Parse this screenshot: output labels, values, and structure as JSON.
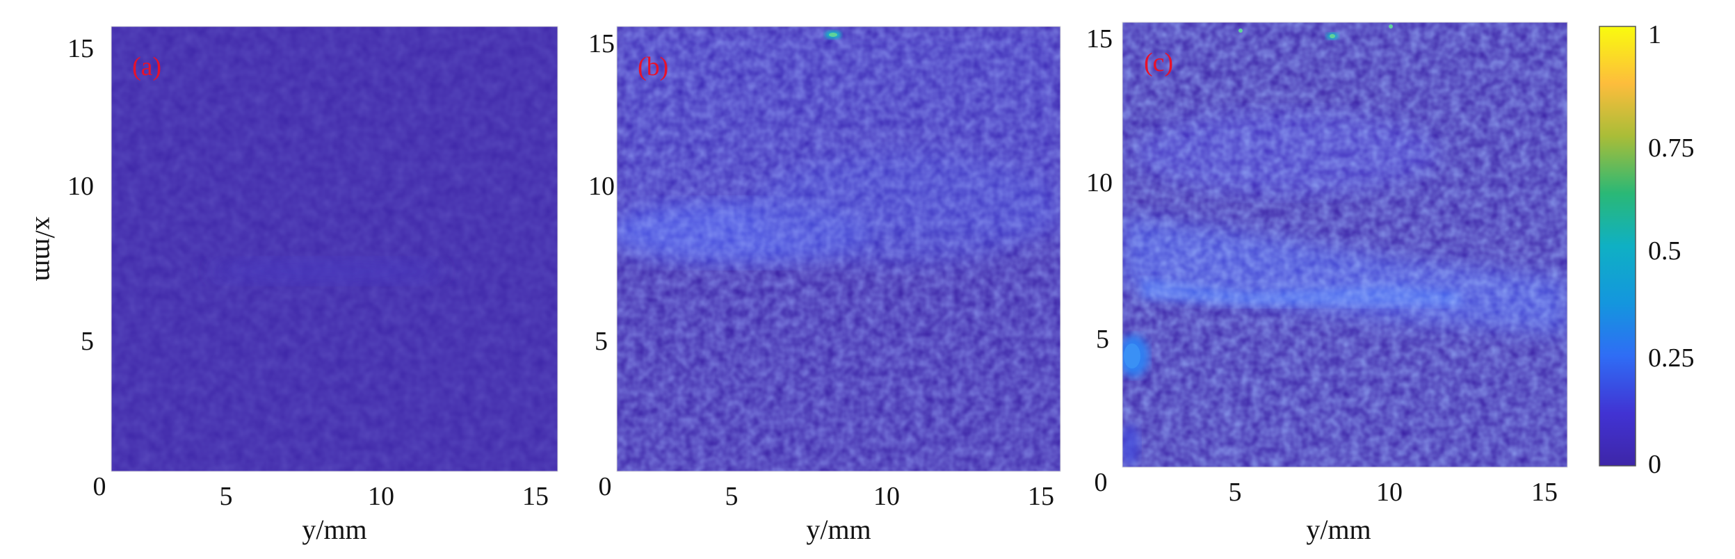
{
  "chart_data": {
    "type": "heatmap",
    "colormap": "parula",
    "colorbar": {
      "ticks": [
        "1",
        "0.75",
        "0.5",
        "0.25",
        "0"
      ],
      "tick_values": [
        1,
        0.75,
        0.5,
        0.25,
        0
      ],
      "range": [
        0,
        1
      ],
      "colors": [
        "#f9fb0e",
        "#fdbd3c",
        "#2ab876",
        "#0f7fdc",
        "#3e26a8"
      ]
    },
    "panels": [
      {
        "label": "(a)",
        "xlabel": "y/mm",
        "ylabel": "x/mm",
        "x_ticks": [
          "0",
          "5",
          "10",
          "15"
        ],
        "y_ticks": [
          "15",
          "10",
          "5"
        ],
        "xlim": [
          0,
          16
        ],
        "ylim": [
          0,
          16
        ],
        "max_value": 0.06,
        "features": [
          {
            "kind": "band",
            "y_center": 7.2,
            "x_range": [
              3,
              11
            ],
            "value": 0.05
          }
        ]
      },
      {
        "label": "(b)",
        "xlabel": "y/mm",
        "ylabel": "",
        "x_ticks": [
          "0",
          "5",
          "10",
          "15"
        ],
        "y_ticks": [
          "15",
          "10",
          "5"
        ],
        "xlim": [
          0,
          16
        ],
        "ylim": [
          0,
          16
        ],
        "max_value": 0.3,
        "features": [
          {
            "kind": "band",
            "y_center": 8.5,
            "x_range": [
              0,
              8
            ],
            "value": 0.15
          },
          {
            "kind": "spot",
            "x": 7.8,
            "y": 15.7,
            "value": 0.3
          }
        ]
      },
      {
        "label": "(c)",
        "xlabel": "y/mm",
        "ylabel": "",
        "x_ticks": [
          "0",
          "5",
          "10",
          "15"
        ],
        "y_ticks": [
          "15",
          "10",
          "5"
        ],
        "xlim": [
          0,
          16
        ],
        "ylim": [
          0,
          16
        ],
        "max_value": 0.3,
        "features": [
          {
            "kind": "band",
            "y_center": 7,
            "x_range": [
              0,
              16
            ],
            "value": 0.18
          },
          {
            "kind": "spot",
            "x": 0.4,
            "y": 4.3,
            "value": 0.25
          },
          {
            "kind": "spot",
            "x": 7.5,
            "y": 15.7,
            "value": 0.3
          }
        ]
      }
    ]
  }
}
